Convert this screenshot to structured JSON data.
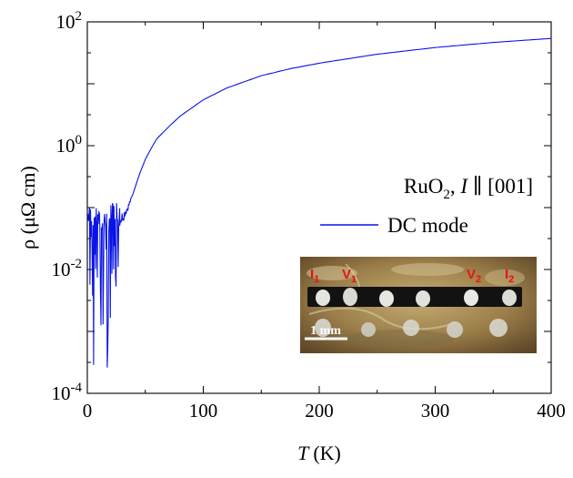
{
  "chart_data": {
    "type": "line",
    "title": "",
    "xlabel_italic": "T",
    "xlabel_unit": "(K)",
    "ylabel": "ρ (μΩ cm)",
    "xlim": [
      0,
      400
    ],
    "ylim_log10": [
      -4,
      2
    ],
    "yscale": "log",
    "x_ticks": [
      "0",
      "100",
      "200",
      "300",
      "400"
    ],
    "y_ticks": [
      {
        "base": "10",
        "exp": "-4"
      },
      {
        "base": "10",
        "exp": "-2"
      },
      {
        "base": "10",
        "exp": "0"
      },
      {
        "base": "10",
        "exp": "2"
      }
    ],
    "legend_title": {
      "base": "RuO",
      "sub": "2",
      "mid": ", ",
      "italic": "I",
      "rest": " ∥ [001]"
    },
    "legend_position": "upper-right",
    "series": [
      {
        "name": "DC mode",
        "color": "#0a14e6",
        "x": [
          5,
          10,
          15,
          20,
          25,
          30,
          35,
          40,
          45,
          50,
          55,
          60,
          70,
          80,
          100,
          120,
          150,
          175,
          200,
          250,
          300,
          350,
          400
        ],
        "y": [
          0.05,
          0.04,
          0.04,
          0.05,
          0.06,
          0.07,
          0.1,
          0.18,
          0.35,
          0.6,
          0.9,
          1.3,
          2.0,
          3.0,
          5.5,
          8.5,
          13.5,
          17.5,
          21.5,
          30.0,
          38.5,
          46.5,
          54.0
        ],
        "noise_floor_region_x": [
          0,
          28
        ],
        "noise_min": 0.0002
      }
    ]
  },
  "inset_photo": {
    "scale_bar_label": "1 mm",
    "contact_labels": [
      {
        "text": "I",
        "sub": "1"
      },
      {
        "text": "V",
        "sub": "1"
      },
      {
        "text": "V",
        "sub": "2"
      },
      {
        "text": "I",
        "sub": "2"
      }
    ],
    "label_color": "#e8120e"
  }
}
